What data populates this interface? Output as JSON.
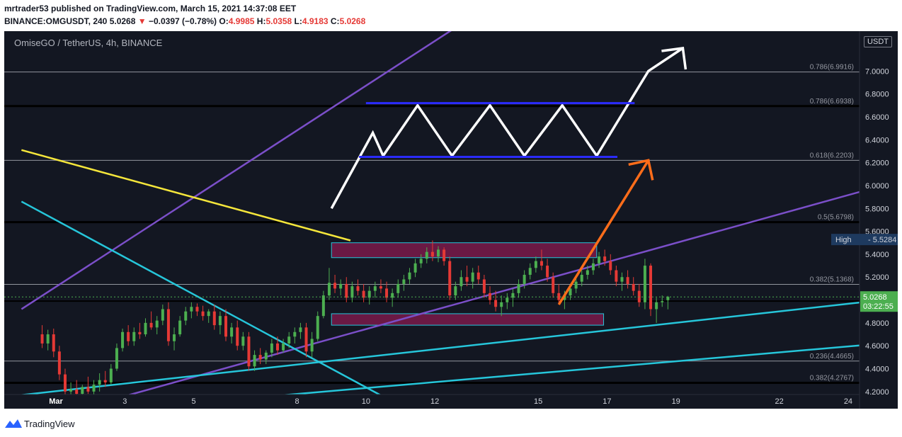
{
  "header": {
    "published_line": "mrtrader53 published on TradingView.com, March 15, 2021 14:37:08 EET",
    "symbol_prefix": "BINANCE:OMGUSDT, 240",
    "last_price": "5.0268",
    "change": "−0.0397 (−0.78%)",
    "open_label": "O:",
    "open_value": "4.9985",
    "high_label": "H:",
    "high_value": "5.0358",
    "low_label": "L:",
    "low_value": "4.9183",
    "close_label": "C:",
    "close_value": "5.0268"
  },
  "chart": {
    "symbol_title": "OmiseGO / TetherUS, 4h, BINANCE",
    "currency": "USDT",
    "high_label": "High",
    "high_value": "5.5284",
    "current_price_label": "5.0268",
    "countdown": "03:22:55"
  },
  "colors": {
    "background": "#131722",
    "up_candle": "#4caf50",
    "down_candle": "#e53935",
    "purple_line": "#7b4fc9",
    "cyan_line": "#26c6da",
    "yellow_line": "#f5e63b",
    "blue_line": "#2b2bff",
    "orange_arrow": "#ff6d1a",
    "zone_fill": "#7a1a4a"
  },
  "footer": {
    "brand": "TradingView"
  },
  "chart_data": {
    "type": "candlestick",
    "yscale": {
      "min": 4.1,
      "max": 7.2
    },
    "y_ticks": [
      4.2,
      4.4,
      4.6,
      4.8,
      5.0,
      5.2,
      5.4,
      5.6,
      5.8,
      6.0,
      6.2,
      6.4,
      6.6,
      6.8,
      7.0
    ],
    "x_ticks": [
      {
        "label": "Mar",
        "day": 1
      },
      {
        "label": "3",
        "day": 3
      },
      {
        "label": "5",
        "day": 5
      },
      {
        "label": "8",
        "day": 8
      },
      {
        "label": "10",
        "day": 10
      },
      {
        "label": "12",
        "day": 12
      },
      {
        "label": "15",
        "day": 15
      },
      {
        "label": "17",
        "day": 17
      },
      {
        "label": "19",
        "day": 19
      },
      {
        "label": "22",
        "day": 22
      },
      {
        "label": "24",
        "day": 24
      }
    ],
    "fib_levels": [
      {
        "label": "0.786(6.9916)",
        "value": 6.9916
      },
      {
        "label": "0.786(6.6938)",
        "value": 6.6938
      },
      {
        "label": "0.618(6.2203)",
        "value": 6.2203
      },
      {
        "label": "0.5(5.6798)",
        "value": 5.6798
      },
      {
        "label": "0.382(5.1368)",
        "value": 5.1368
      },
      {
        "label": "0.236(4.4665)",
        "value": 4.4665
      },
      {
        "label": "0.382(4.2767)",
        "value": 4.2767
      }
    ],
    "zones": [
      {
        "day_start": 9.0,
        "day_end": 16.7,
        "low": 5.37,
        "high": 5.5
      },
      {
        "day_start": 9.0,
        "day_end": 16.9,
        "low": 4.78,
        "high": 4.88
      }
    ],
    "candles": [
      [
        4.7,
        4.78,
        4.58,
        4.62
      ],
      [
        4.62,
        4.74,
        4.56,
        4.7
      ],
      [
        4.7,
        4.75,
        4.5,
        4.55
      ],
      [
        4.55,
        4.6,
        4.3,
        4.35
      ],
      [
        4.35,
        4.4,
        4.15,
        4.2
      ],
      [
        4.2,
        4.28,
        4.14,
        4.22
      ],
      [
        4.22,
        4.3,
        4.16,
        4.18
      ],
      [
        4.18,
        4.26,
        4.14,
        4.24
      ],
      [
        4.24,
        4.33,
        4.18,
        4.2
      ],
      [
        4.2,
        4.3,
        4.16,
        4.26
      ],
      [
        4.26,
        4.36,
        4.2,
        4.3
      ],
      [
        4.3,
        4.38,
        4.24,
        4.28
      ],
      [
        4.28,
        4.44,
        4.26,
        4.4
      ],
      [
        4.4,
        4.62,
        4.38,
        4.58
      ],
      [
        4.58,
        4.75,
        4.55,
        4.72
      ],
      [
        4.72,
        4.78,
        4.6,
        4.64
      ],
      [
        4.64,
        4.76,
        4.6,
        4.72
      ],
      [
        4.72,
        4.8,
        4.66,
        4.7
      ],
      [
        4.7,
        4.84,
        4.68,
        4.8
      ],
      [
        4.8,
        4.9,
        4.74,
        4.76
      ],
      [
        4.76,
        4.86,
        4.7,
        4.82
      ],
      [
        4.82,
        4.96,
        4.78,
        4.92
      ],
      [
        4.92,
        4.98,
        4.6,
        4.64
      ],
      [
        4.64,
        4.76,
        4.56,
        4.7
      ],
      [
        4.7,
        4.86,
        4.68,
        4.82
      ],
      [
        4.82,
        4.94,
        4.78,
        4.9
      ],
      [
        4.9,
        4.98,
        4.84,
        4.94
      ],
      [
        4.94,
        4.97,
        4.86,
        4.9
      ],
      [
        4.9,
        4.95,
        4.82,
        4.86
      ],
      [
        4.86,
        4.92,
        4.8,
        4.9
      ],
      [
        4.9,
        4.96,
        4.74,
        4.78
      ],
      [
        4.78,
        4.9,
        4.7,
        4.86
      ],
      [
        4.86,
        4.92,
        4.64,
        4.68
      ],
      [
        4.68,
        4.8,
        4.62,
        4.76
      ],
      [
        4.76,
        4.82,
        4.56,
        4.6
      ],
      [
        4.6,
        4.72,
        4.56,
        4.68
      ],
      [
        4.68,
        4.72,
        4.38,
        4.42
      ],
      [
        4.42,
        4.56,
        4.38,
        4.52
      ],
      [
        4.52,
        4.58,
        4.44,
        4.48
      ],
      [
        4.48,
        4.56,
        4.44,
        4.54
      ],
      [
        4.54,
        4.66,
        4.5,
        4.62
      ],
      [
        4.62,
        4.68,
        4.52,
        4.56
      ],
      [
        4.56,
        4.66,
        4.54,
        4.62
      ],
      [
        4.62,
        4.72,
        4.58,
        4.68
      ],
      [
        4.68,
        4.76,
        4.62,
        4.72
      ],
      [
        4.72,
        4.8,
        4.66,
        4.76
      ],
      [
        4.76,
        4.8,
        4.5,
        4.55
      ],
      [
        4.55,
        4.72,
        4.5,
        4.66
      ],
      [
        4.66,
        4.9,
        4.64,
        4.86
      ],
      [
        4.86,
        5.08,
        4.84,
        5.04
      ],
      [
        5.04,
        5.28,
        5.0,
        5.15
      ],
      [
        5.15,
        5.22,
        5.06,
        5.1
      ],
      [
        5.1,
        5.18,
        5.04,
        5.14
      ],
      [
        5.14,
        5.2,
        4.98,
        5.02
      ],
      [
        5.02,
        5.16,
        4.98,
        5.12
      ],
      [
        5.12,
        5.18,
        5.04,
        5.08
      ],
      [
        5.08,
        5.14,
        4.98,
        5.02
      ],
      [
        5.02,
        5.12,
        4.96,
        5.08
      ],
      [
        5.08,
        5.16,
        5.02,
        5.12
      ],
      [
        5.12,
        5.18,
        5.06,
        5.1
      ],
      [
        5.1,
        5.16,
        4.98,
        5.02
      ],
      [
        5.02,
        5.1,
        4.94,
        5.06
      ],
      [
        5.06,
        5.18,
        5.02,
        5.14
      ],
      [
        5.14,
        5.22,
        5.08,
        5.18
      ],
      [
        5.18,
        5.28,
        5.14,
        5.24
      ],
      [
        5.24,
        5.36,
        5.2,
        5.32
      ],
      [
        5.32,
        5.4,
        5.28,
        5.36
      ],
      [
        5.36,
        5.46,
        5.32,
        5.42
      ],
      [
        5.42,
        5.52,
        5.34,
        5.38
      ],
      [
        5.38,
        5.47,
        5.33,
        5.44
      ],
      [
        5.44,
        5.46,
        5.3,
        5.34
      ],
      [
        5.34,
        5.38,
        5.0,
        5.04
      ],
      [
        5.04,
        5.16,
        5.0,
        5.12
      ],
      [
        5.12,
        5.26,
        5.08,
        5.2
      ],
      [
        5.2,
        5.3,
        5.12,
        5.16
      ],
      [
        5.16,
        5.28,
        5.1,
        5.24
      ],
      [
        5.24,
        5.3,
        5.14,
        5.18
      ],
      [
        5.18,
        5.22,
        5.02,
        5.06
      ],
      [
        5.06,
        5.12,
        4.96,
        5.0
      ],
      [
        5.0,
        5.08,
        4.9,
        4.94
      ],
      [
        4.94,
        5.04,
        4.86,
        4.98
      ],
      [
        4.98,
        5.06,
        4.92,
        5.02
      ],
      [
        5.02,
        5.1,
        4.94,
        5.06
      ],
      [
        5.06,
        5.18,
        5.02,
        5.14
      ],
      [
        5.14,
        5.26,
        5.1,
        5.22
      ],
      [
        5.22,
        5.32,
        5.18,
        5.28
      ],
      [
        5.28,
        5.38,
        5.24,
        5.34
      ],
      [
        5.34,
        5.44,
        5.26,
        5.3
      ],
      [
        5.3,
        5.36,
        5.16,
        5.2
      ],
      [
        5.2,
        5.24,
        5.02,
        5.06
      ],
      [
        5.06,
        5.14,
        4.96,
        5.0
      ],
      [
        5.0,
        5.08,
        4.92,
        5.04
      ],
      [
        5.04,
        5.14,
        5.0,
        5.1
      ],
      [
        5.1,
        5.2,
        5.06,
        5.16
      ],
      [
        5.16,
        5.26,
        5.12,
        5.22
      ],
      [
        5.22,
        5.3,
        5.18,
        5.26
      ],
      [
        5.26,
        5.36,
        5.22,
        5.32
      ],
      [
        5.32,
        5.42,
        5.28,
        5.38
      ],
      [
        5.38,
        5.44,
        5.3,
        5.34
      ],
      [
        5.34,
        5.4,
        5.22,
        5.26
      ],
      [
        5.26,
        5.3,
        5.12,
        5.16
      ],
      [
        5.16,
        5.24,
        5.08,
        5.2
      ],
      [
        5.2,
        5.26,
        5.1,
        5.14
      ],
      [
        5.14,
        5.2,
        5.04,
        5.08
      ],
      [
        5.08,
        5.14,
        4.94,
        4.98
      ],
      [
        4.98,
        5.36,
        4.92,
        5.3
      ],
      [
        5.3,
        5.32,
        4.86,
        4.92
      ],
      [
        4.92,
        5.02,
        4.8,
        4.98
      ],
      [
        4.98,
        5.04,
        4.94,
        4.99
      ],
      [
        4.9985,
        5.0358,
        4.9183,
        5.0268
      ]
    ],
    "trendlines": [
      {
        "name": "purple-channel-upper",
        "color": "purple_line",
        "points": [
          [
            0,
            4.92
          ],
          [
            25,
            9.8
          ]
        ]
      },
      {
        "name": "purple-channel-lower",
        "color": "purple_line",
        "points": [
          [
            3,
            4.16
          ],
          [
            25,
            6.0
          ]
        ]
      },
      {
        "name": "yellow-resistance",
        "color": "yellow_line",
        "points": [
          [
            0,
            6.31
          ],
          [
            9.55,
            5.52
          ]
        ]
      },
      {
        "name": "cyan-descending",
        "color": "cyan_line",
        "points": [
          [
            0,
            5.86
          ],
          [
            10.6,
            4.14
          ]
        ]
      },
      {
        "name": "cyan-ascending-upper",
        "color": "cyan_line",
        "points": [
          [
            0,
            4.17
          ],
          [
            25,
            5.0
          ]
        ]
      },
      {
        "name": "cyan-ascending-lower",
        "color": "cyan_line",
        "points": [
          [
            6.5,
            4.14
          ],
          [
            25,
            4.62
          ]
        ]
      }
    ],
    "projection": {
      "white_path": [
        [
          9.0,
          5.8
        ],
        [
          10.2,
          6.46
        ],
        [
          10.5,
          6.26
        ],
        [
          11.5,
          6.7
        ],
        [
          12.5,
          6.26
        ],
        [
          13.6,
          6.7
        ],
        [
          14.6,
          6.26
        ],
        [
          15.7,
          6.7
        ],
        [
          16.7,
          6.26
        ],
        [
          18.2,
          7.0
        ]
      ],
      "white_arrow_tip": [
        19.2,
        7.2
      ],
      "blue_lines": [
        {
          "x1": 10.0,
          "x2": 17.8,
          "y": 6.72
        },
        {
          "x1": 9.8,
          "x2": 17.3,
          "y": 6.25
        }
      ],
      "orange_path": [
        [
          15.6,
          4.96
        ],
        [
          18.2,
          6.22
        ]
      ]
    }
  }
}
